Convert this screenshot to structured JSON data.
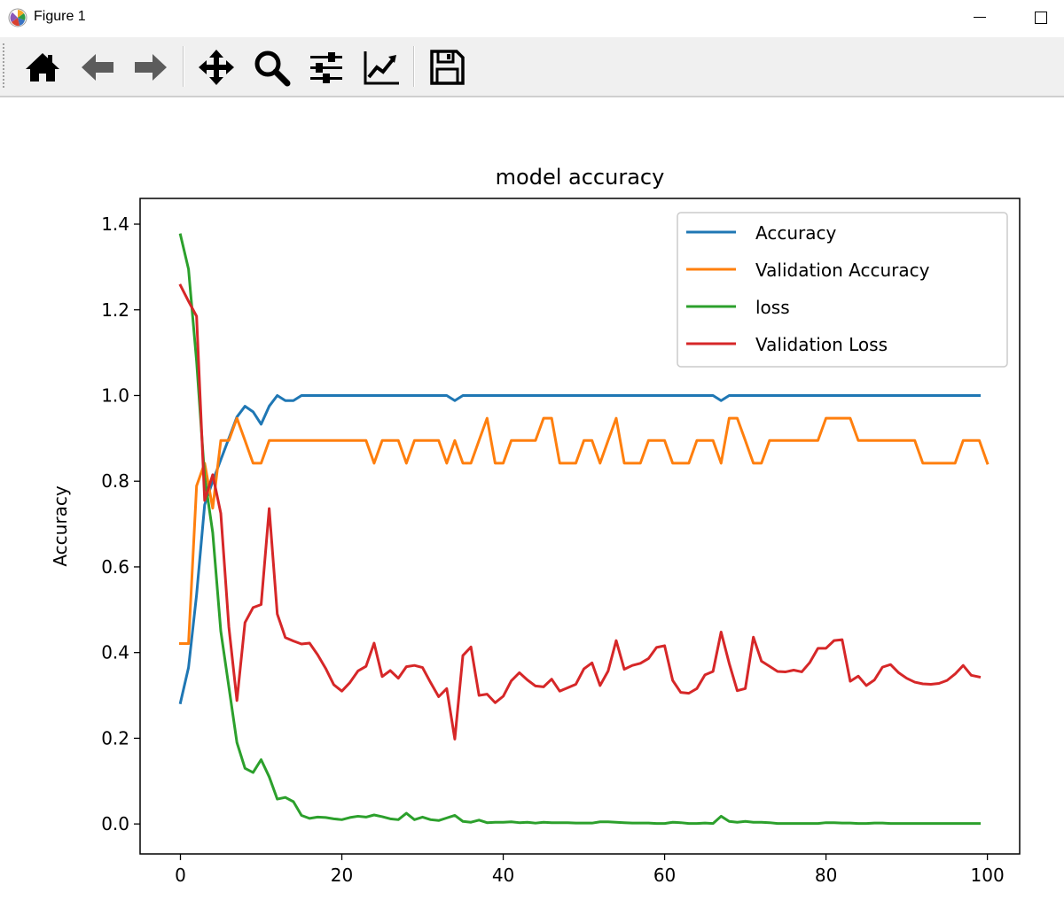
{
  "window": {
    "title": "Figure 1"
  },
  "toolbar": {
    "buttons": [
      {
        "name": "home-button",
        "icon": "home-icon"
      },
      {
        "name": "back-button",
        "icon": "arrow-left-icon"
      },
      {
        "name": "forward-button",
        "icon": "arrow-right-icon"
      },
      {
        "name": "pan-button",
        "icon": "move-icon"
      },
      {
        "name": "zoom-button",
        "icon": "zoom-icon"
      },
      {
        "name": "subplots-button",
        "icon": "sliders-icon"
      },
      {
        "name": "customize-button",
        "icon": "line-chart-icon"
      },
      {
        "name": "save-button",
        "icon": "floppy-disk-icon"
      }
    ]
  },
  "chart_data": {
    "type": "line",
    "title": "model accuracy",
    "xlabel": "",
    "ylabel": "Accuracy",
    "xlim": [
      -5,
      104
    ],
    "ylim": [
      -0.07,
      1.46
    ],
    "xticks": [
      0,
      20,
      40,
      60,
      80,
      100
    ],
    "yticks": [
      0.0,
      0.2,
      0.4,
      0.6,
      0.8,
      1.0,
      1.2,
      1.4
    ],
    "ytick_labels": [
      "0.0",
      "0.2",
      "0.4",
      "0.6",
      "0.8",
      "1.0",
      "1.2",
      "1.4"
    ],
    "grid": false,
    "legend": "upper right",
    "series": [
      {
        "name": "Accuracy",
        "color": "#1f77b4",
        "values": [
          0.283,
          0.365,
          0.535,
          0.745,
          0.8,
          0.85,
          0.9,
          0.95,
          0.975,
          0.962,
          0.933,
          0.975,
          1.0,
          0.988,
          0.988,
          1.0,
          1.0,
          1.0,
          1.0,
          1.0,
          1.0,
          1.0,
          1.0,
          1.0,
          1.0,
          1.0,
          1.0,
          1.0,
          1.0,
          1.0,
          1.0,
          1.0,
          1.0,
          1.0,
          0.988,
          1.0,
          1.0,
          1.0,
          1.0,
          1.0,
          1.0,
          1.0,
          1.0,
          1.0,
          1.0,
          1.0,
          1.0,
          1.0,
          1.0,
          1.0,
          1.0,
          1.0,
          1.0,
          1.0,
          1.0,
          1.0,
          1.0,
          1.0,
          1.0,
          1.0,
          1.0,
          1.0,
          1.0,
          1.0,
          1.0,
          1.0,
          1.0,
          0.988,
          1.0,
          1.0,
          1.0,
          1.0,
          1.0,
          1.0,
          1.0,
          1.0,
          1.0,
          1.0,
          1.0,
          1.0,
          1.0,
          1.0,
          1.0,
          1.0,
          1.0,
          1.0,
          1.0,
          1.0,
          1.0,
          1.0,
          1.0,
          1.0,
          1.0,
          1.0,
          1.0,
          1.0,
          1.0,
          1.0,
          1.0,
          1.0
        ]
      },
      {
        "name": "Validation Accuracy",
        "color": "#ff7f0e",
        "values": [
          0.421,
          0.421,
          0.789,
          0.842,
          0.737,
          0.895,
          0.895,
          0.947,
          0.895,
          0.842,
          0.842,
          0.895,
          0.895,
          0.895,
          0.895,
          0.895,
          0.895,
          0.895,
          0.895,
          0.895,
          0.895,
          0.895,
          0.895,
          0.895,
          0.842,
          0.895,
          0.895,
          0.895,
          0.842,
          0.895,
          0.895,
          0.895,
          0.895,
          0.842,
          0.895,
          0.842,
          0.842,
          0.895,
          0.947,
          0.842,
          0.842,
          0.895,
          0.895,
          0.895,
          0.895,
          0.947,
          0.947,
          0.842,
          0.842,
          0.842,
          0.895,
          0.895,
          0.842,
          0.895,
          0.947,
          0.842,
          0.842,
          0.842,
          0.895,
          0.895,
          0.895,
          0.842,
          0.842,
          0.842,
          0.895,
          0.895,
          0.895,
          0.842,
          0.947,
          0.947,
          0.895,
          0.842,
          0.842,
          0.895,
          0.895,
          0.895,
          0.895,
          0.895,
          0.895,
          0.895,
          0.947,
          0.947,
          0.947,
          0.947,
          0.895,
          0.895,
          0.895,
          0.895,
          0.895,
          0.895,
          0.895,
          0.895,
          0.842,
          0.842,
          0.842,
          0.842,
          0.842,
          0.895,
          0.895,
          0.895,
          0.842
        ]
      },
      {
        "name": "loss",
        "color": "#2ca02c",
        "values": [
          1.375,
          1.295,
          1.08,
          0.81,
          0.68,
          0.45,
          0.32,
          0.19,
          0.13,
          0.12,
          0.15,
          0.11,
          0.058,
          0.062,
          0.052,
          0.02,
          0.013,
          0.016,
          0.015,
          0.012,
          0.01,
          0.015,
          0.018,
          0.016,
          0.021,
          0.017,
          0.012,
          0.01,
          0.025,
          0.01,
          0.016,
          0.01,
          0.008,
          0.014,
          0.02,
          0.006,
          0.004,
          0.009,
          0.003,
          0.004,
          0.004,
          0.005,
          0.003,
          0.004,
          0.002,
          0.004,
          0.003,
          0.003,
          0.003,
          0.002,
          0.002,
          0.002,
          0.005,
          0.005,
          0.004,
          0.003,
          0.002,
          0.002,
          0.002,
          0.001,
          0.001,
          0.004,
          0.003,
          0.001,
          0.001,
          0.002,
          0.001,
          0.018,
          0.006,
          0.004,
          0.006,
          0.004,
          0.004,
          0.003,
          0.001,
          0.001,
          0.001,
          0.001,
          0.001,
          0.001,
          0.003,
          0.003,
          0.002,
          0.002,
          0.001,
          0.001,
          0.002,
          0.002,
          0.001,
          0.001,
          0.001,
          0.001,
          0.001,
          0.001,
          0.001,
          0.001,
          0.001,
          0.001,
          0.001,
          0.001
        ]
      },
      {
        "name": "Validation Loss",
        "color": "#d62728",
        "values": [
          1.257,
          1.22,
          1.185,
          0.755,
          0.815,
          0.725,
          0.46,
          0.288,
          0.47,
          0.505,
          0.512,
          0.736,
          0.49,
          0.435,
          0.427,
          0.42,
          0.422,
          0.395,
          0.363,
          0.325,
          0.31,
          0.33,
          0.357,
          0.368,
          0.422,
          0.344,
          0.358,
          0.34,
          0.367,
          0.37,
          0.365,
          0.33,
          0.297,
          0.316,
          0.198,
          0.393,
          0.413,
          0.3,
          0.303,
          0.283,
          0.298,
          0.334,
          0.353,
          0.336,
          0.322,
          0.32,
          0.338,
          0.31,
          0.318,
          0.326,
          0.362,
          0.376,
          0.323,
          0.357,
          0.428,
          0.361,
          0.37,
          0.375,
          0.386,
          0.412,
          0.416,
          0.335,
          0.307,
          0.305,
          0.316,
          0.348,
          0.356,
          0.448,
          0.375,
          0.311,
          0.316,
          0.436,
          0.38,
          0.368,
          0.356,
          0.355,
          0.359,
          0.355,
          0.377,
          0.41,
          0.41,
          0.428,
          0.43,
          0.333,
          0.345,
          0.323,
          0.336,
          0.366,
          0.372,
          0.353,
          0.34,
          0.331,
          0.327,
          0.326,
          0.328,
          0.335,
          0.35,
          0.37,
          0.347,
          0.343
        ]
      }
    ]
  }
}
